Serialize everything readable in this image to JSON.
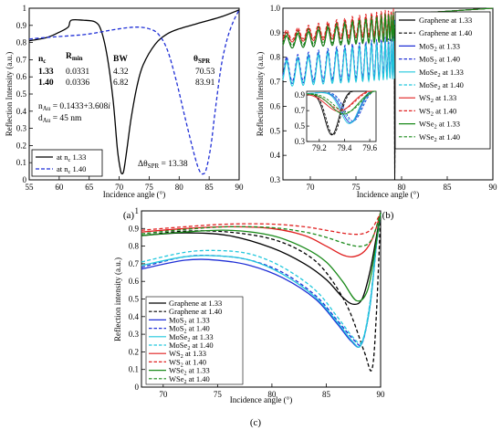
{
  "chart_data": [
    {
      "type": "line",
      "panel_label": "(a)",
      "xlabel": "Incidence angle (°)",
      "ylabel": "Reflection Intensity (a.u.)",
      "xlim": [
        55,
        90
      ],
      "ylim": [
        0,
        1
      ],
      "xticks": [
        "55",
        "60",
        "65",
        "70",
        "75",
        "80",
        "85",
        "90"
      ],
      "yticks": [
        "0",
        "0.1",
        "0.2",
        "0.3",
        "0.4",
        "0.5",
        "0.6",
        "0.7",
        "0.8",
        "0.9",
        "1"
      ],
      "series": [
        {
          "name": "at n",
          "name_sub": "c",
          "name_tail": " 1.33",
          "color": "#000000",
          "dash": "solid",
          "x": [
            55,
            58,
            60,
            61.5,
            62,
            64,
            66,
            67,
            68,
            69,
            69.7,
            70.2,
            70.5,
            70.8,
            71.3,
            72,
            73,
            74,
            76,
            78,
            80,
            84,
            87,
            90
          ],
          "y": [
            0.81,
            0.83,
            0.86,
            0.89,
            0.93,
            0.93,
            0.92,
            0.87,
            0.72,
            0.46,
            0.18,
            0.06,
            0.035,
            0.06,
            0.18,
            0.36,
            0.55,
            0.67,
            0.79,
            0.85,
            0.88,
            0.92,
            0.95,
            0.99
          ]
        },
        {
          "name": "at n",
          "name_sub": "c",
          "name_tail": " 1.40",
          "color": "#1f2fd6",
          "dash": "dashed",
          "x": [
            55,
            58,
            62,
            65,
            70,
            73,
            75,
            76.5,
            78,
            79.5,
            81,
            82.5,
            83.3,
            83.9,
            84.5,
            85.3,
            86,
            87,
            88,
            89,
            90
          ],
          "y": [
            0.82,
            0.83,
            0.84,
            0.85,
            0.88,
            0.89,
            0.88,
            0.85,
            0.76,
            0.58,
            0.36,
            0.15,
            0.06,
            0.034,
            0.06,
            0.2,
            0.4,
            0.66,
            0.82,
            0.92,
            0.99
          ]
        }
      ],
      "table": {
        "headers": [
          "n",
          "R",
          "BW",
          "θ"
        ],
        "header_subs": [
          "c",
          "min",
          "",
          "SPR"
        ],
        "rows": [
          [
            "1.33",
            "0.0331",
            "4.32",
            "70.53"
          ],
          [
            "1.40",
            "0.0336",
            "6.82",
            "83.91"
          ]
        ]
      },
      "annotations": {
        "nau_a": "n",
        "nau_b": "Au",
        "nau_c": " = 0.1433+3.608",
        "nau_d": "i",
        "dau_a": "d",
        "dau_b": "Au",
        "dau_c": " = 45 nm",
        "dtheta_a": "Δθ",
        "dtheta_b": "SPR",
        "dtheta_c": " = 13.38"
      }
    },
    {
      "type": "line",
      "panel_label": "(b)",
      "xlabel": "Incidence angle (°)",
      "ylabel": "Reflection Intensity (a.u.)",
      "xlim": [
        67,
        90
      ],
      "ylim": [
        0.3,
        1.0
      ],
      "xticks": [
        "70",
        "75",
        "80",
        "85",
        "90"
      ],
      "yticks": [
        "0.3",
        "0.4",
        "0.5",
        "0.6",
        "0.7",
        "0.8",
        "0.9",
        "1.0"
      ],
      "series": [
        {
          "name": "Graphene at 1.33",
          "color": "#000000",
          "dash": "solid",
          "base": 0.86,
          "amp": 0.05,
          "dip": 0.36
        },
        {
          "name": "Graphene at 1.40",
          "color": "#000000",
          "dash": "dashed",
          "base": 0.87,
          "amp": 0.05,
          "dip": 0.38
        },
        {
          "name": "MoS",
          "name_sub": "2",
          "name_tail": " at 1.33",
          "color": "#1f2fd6",
          "dash": "solid",
          "base": 0.74,
          "amp": 0.1,
          "dip": 0.5
        },
        {
          "name": "MoS",
          "name_sub": "2",
          "name_tail": " at 1.40",
          "color": "#1f2fd6",
          "dash": "dashed",
          "base": 0.75,
          "amp": 0.1,
          "dip": 0.52
        },
        {
          "name": "MoSe",
          "name_sub": "2",
          "name_tail": " at 1.33",
          "color": "#22c8dd",
          "dash": "solid",
          "base": 0.73,
          "amp": 0.1,
          "dip": 0.49
        },
        {
          "name": "MoSe",
          "name_sub": "2",
          "name_tail": " at 1.40",
          "color": "#22c8dd",
          "dash": "dashed",
          "base": 0.74,
          "amp": 0.1,
          "dip": 0.51
        },
        {
          "name": "WS",
          "name_sub": "2",
          "name_tail": " at 1.33",
          "color": "#e02020",
          "dash": "solid",
          "base": 0.88,
          "amp": 0.04,
          "dip": 0.66
        },
        {
          "name": "WS",
          "name_sub": "2",
          "name_tail": " at 1.40",
          "color": "#e02020",
          "dash": "dashed",
          "base": 0.89,
          "amp": 0.04,
          "dip": 0.68
        },
        {
          "name": "WSe",
          "name_sub": "2",
          "name_tail": " at 1.33",
          "color": "#1a8a1a",
          "dash": "solid",
          "base": 0.86,
          "amp": 0.05,
          "dip": 0.62
        },
        {
          "name": "WSe",
          "name_sub": "2",
          "name_tail": " at 1.40",
          "color": "#1a8a1a",
          "dash": "dashed",
          "base": 0.87,
          "amp": 0.05,
          "dip": 0.64
        }
      ],
      "inset": {
        "xlim": [
          79.1,
          79.65
        ],
        "ylim": [
          0.3,
          0.95
        ],
        "xticks": [
          "79.2",
          "79.4",
          "79.6"
        ],
        "yticks": [
          "0.3",
          "0.5",
          "0.7",
          "0.9"
        ],
        "minima": [
          79.3,
          79.32,
          79.45,
          79.47,
          79.44,
          79.46,
          79.36,
          79.38,
          79.4,
          79.42
        ]
      }
    },
    {
      "type": "line",
      "panel_label": "(c)",
      "xlabel": "Incidence angle (°)",
      "ylabel": "Reflection intensity (a.u.)",
      "xlim": [
        68,
        90
      ],
      "ylim": [
        0,
        1
      ],
      "xticks": [
        "70",
        "75",
        "80",
        "85",
        "90"
      ],
      "yticks": [
        "0",
        "0.1",
        "0.2",
        "0.3",
        "0.4",
        "0.5",
        "0.6",
        "0.7",
        "0.8",
        "0.9",
        "1"
      ],
      "series": [
        {
          "name": "Graphene at 1.33",
          "color": "#000000",
          "dash": "solid",
          "x": [
            68,
            72,
            76,
            80,
            83,
            85,
            86.5,
            87.5,
            88.3,
            89,
            89.6,
            90
          ],
          "y": [
            0.86,
            0.875,
            0.86,
            0.79,
            0.7,
            0.61,
            0.51,
            0.47,
            0.5,
            0.65,
            0.85,
            0.99
          ]
        },
        {
          "name": "Graphene at 1.40",
          "color": "#000000",
          "dash": "dashed",
          "x": [
            68,
            72,
            76,
            80,
            83,
            85,
            87,
            88.5,
            89.2,
            89.6,
            90
          ],
          "y": [
            0.86,
            0.885,
            0.88,
            0.84,
            0.76,
            0.65,
            0.45,
            0.2,
            0.1,
            0.4,
            0.99
          ]
        },
        {
          "name": "MoS",
          "name_sub": "2",
          "name_tail": " at 1.33",
          "color": "#1f2fd6",
          "dash": "solid",
          "x": [
            68,
            72,
            75,
            78,
            81,
            84,
            86,
            87.3,
            88.2,
            89,
            89.6,
            90
          ],
          "y": [
            0.67,
            0.72,
            0.72,
            0.69,
            0.62,
            0.5,
            0.36,
            0.26,
            0.24,
            0.45,
            0.8,
            0.99
          ]
        },
        {
          "name": "MoS",
          "name_sub": "2",
          "name_tail": " at 1.40",
          "color": "#1f2fd6",
          "dash": "dashed",
          "x": [
            68,
            72,
            75,
            78,
            81,
            84,
            86,
            87.5,
            88.3,
            89,
            89.6,
            90
          ],
          "y": [
            0.68,
            0.74,
            0.745,
            0.72,
            0.65,
            0.52,
            0.38,
            0.27,
            0.25,
            0.46,
            0.8,
            0.99
          ]
        },
        {
          "name": "MoSe",
          "name_sub": "2",
          "name_tail": " at 1.33",
          "color": "#22c8dd",
          "dash": "solid",
          "x": [
            68,
            72,
            75,
            78,
            81,
            84,
            86,
            87.4,
            88.2,
            89,
            89.6,
            90
          ],
          "y": [
            0.69,
            0.74,
            0.745,
            0.72,
            0.64,
            0.51,
            0.37,
            0.26,
            0.24,
            0.45,
            0.8,
            0.99
          ]
        },
        {
          "name": "MoSe",
          "name_sub": "2",
          "name_tail": " at 1.40",
          "color": "#22c8dd",
          "dash": "dashed",
          "x": [
            68,
            72,
            75,
            78,
            81,
            84,
            86,
            87.5,
            88.3,
            89,
            89.6,
            90
          ],
          "y": [
            0.71,
            0.765,
            0.775,
            0.755,
            0.68,
            0.55,
            0.4,
            0.28,
            0.26,
            0.47,
            0.8,
            0.99
          ]
        },
        {
          "name": "WS",
          "name_sub": "2",
          "name_tail": " at 1.33",
          "color": "#e02020",
          "dash": "solid",
          "x": [
            68,
            72,
            76,
            80,
            83,
            85,
            86.5,
            87.5,
            88.5,
            89.3,
            90
          ],
          "y": [
            0.88,
            0.9,
            0.91,
            0.9,
            0.86,
            0.8,
            0.75,
            0.74,
            0.77,
            0.85,
            0.99
          ]
        },
        {
          "name": "WS",
          "name_sub": "2",
          "name_tail": " at 1.40",
          "color": "#e02020",
          "dash": "dashed",
          "x": [
            68,
            72,
            76,
            80,
            83,
            85,
            87,
            88.3,
            89.2,
            90
          ],
          "y": [
            0.89,
            0.91,
            0.925,
            0.925,
            0.91,
            0.89,
            0.87,
            0.87,
            0.9,
            0.99
          ]
        },
        {
          "name": "WSe",
          "name_sub": "2",
          "name_tail": " at 1.33",
          "color": "#1a8a1a",
          "dash": "solid",
          "x": [
            68,
            72,
            76,
            80,
            83,
            85,
            86.5,
            87.8,
            88.8,
            89.5,
            90
          ],
          "y": [
            0.86,
            0.88,
            0.89,
            0.86,
            0.79,
            0.71,
            0.6,
            0.49,
            0.55,
            0.78,
            0.99
          ]
        },
        {
          "name": "WSe",
          "name_sub": "2",
          "name_tail": " at 1.40",
          "color": "#1a8a1a",
          "dash": "dashed",
          "x": [
            68,
            72,
            76,
            80,
            83,
            85,
            87,
            88.3,
            89.2,
            90
          ],
          "y": [
            0.87,
            0.895,
            0.91,
            0.905,
            0.88,
            0.85,
            0.81,
            0.8,
            0.84,
            0.99
          ]
        }
      ]
    }
  ]
}
